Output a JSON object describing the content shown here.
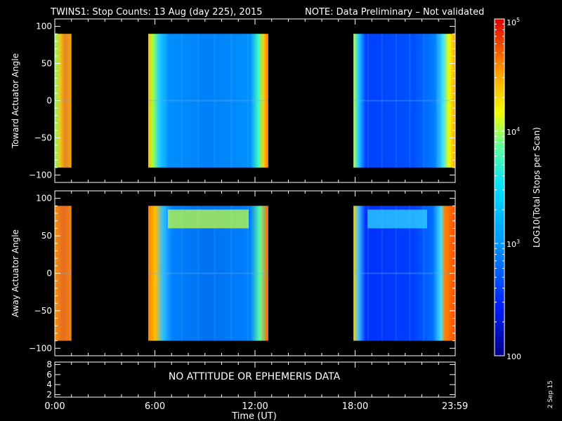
{
  "title": "TWINS1: Stop Counts: 13 Aug (day 225), 2015",
  "note": "NOTE: Data Preliminary – Not validated",
  "date_stamp": "2 Sep 15",
  "no_data_msg": "NO ATTITUDE OR EPHEMERIS DATA",
  "colors": {
    "note": "#ff2020",
    "background": "#000000",
    "axes": "#ffffff"
  },
  "chart_data": [
    {
      "type": "heatmap",
      "ylabel": "Toward Actuator Angle",
      "ylim": [
        -110,
        110
      ],
      "yticks": [
        100,
        50,
        0,
        -50,
        -100
      ],
      "xlim": [
        0,
        24
      ],
      "angle_range": [
        -90,
        90
      ],
      "data_intervals": [
        {
          "start_h": 0.0,
          "end_h": 1.0,
          "level": "high"
        },
        {
          "start_h": 5.6,
          "end_h": 12.8,
          "level": "medium"
        },
        {
          "start_h": 17.9,
          "end_h": 24.0,
          "level": "low-medium"
        }
      ]
    },
    {
      "type": "heatmap",
      "ylabel": "Away Actuator Angle",
      "ylim": [
        -110,
        110
      ],
      "yticks": [
        100,
        50,
        0,
        -50,
        -100
      ],
      "xlim": [
        0,
        24
      ],
      "angle_range": [
        -90,
        90
      ],
      "data_intervals": [
        {
          "start_h": 0.0,
          "end_h": 1.0,
          "level": "high"
        },
        {
          "start_h": 5.6,
          "end_h": 12.8,
          "level": "medium"
        },
        {
          "start_h": 17.9,
          "end_h": 24.0,
          "level": "low-medium"
        }
      ]
    },
    {
      "type": "line",
      "ylim": [
        1.5,
        8.5
      ],
      "yticks": [
        8,
        6,
        4,
        2
      ]
    }
  ],
  "x_axis": {
    "label": "Time (UT)",
    "ticks": [
      {
        "hour": 0.0,
        "label": "0:00"
      },
      {
        "hour": 6.0,
        "label": "6:00"
      },
      {
        "hour": 12.0,
        "label": "12:00"
      },
      {
        "hour": 18.0,
        "label": "18:00"
      },
      {
        "hour": 23.983,
        "label": "23:59"
      }
    ]
  },
  "colorbar": {
    "label": "LOG10(Total Stops per Scan)",
    "range": [
      100,
      100000
    ],
    "ticks": [
      {
        "value": 100000,
        "label": "10^5"
      },
      {
        "value": 10000,
        "label": "10^4"
      },
      {
        "value": 1000,
        "label": "10^3"
      },
      {
        "value": 100,
        "label": "100"
      }
    ]
  }
}
